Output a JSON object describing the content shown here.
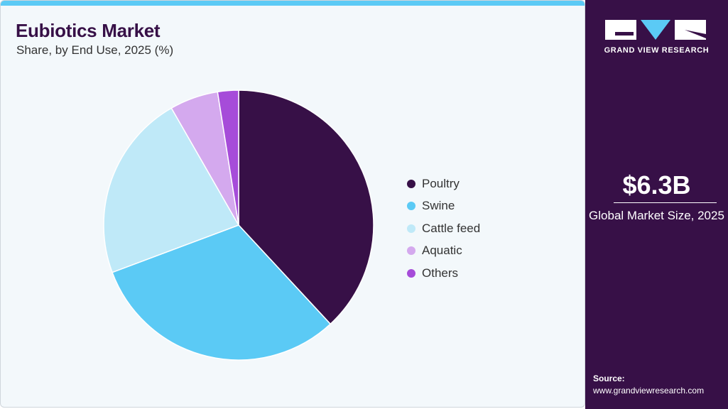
{
  "header": {
    "title": "Eubiotics Market",
    "subtitle": "Share, by End Use, 2025 (%)"
  },
  "chart_data": {
    "type": "pie",
    "title": "Eubiotics Market",
    "subtitle": "Share, by End Use, 2025 (%)",
    "start_angle": "12 o'clock, clockwise",
    "legend_position": "right",
    "categories": [
      "Poultry",
      "Swine",
      "Cattle feed",
      "Aquatic",
      "Others"
    ],
    "values": [
      38.1,
      31.2,
      22.4,
      5.8,
      2.5
    ],
    "colors": [
      "#371047",
      "#5bcaf5",
      "#bfe9f8",
      "#d4a9ee",
      "#a64cd9"
    ]
  },
  "sidebar": {
    "logo_text": "GRAND VIEW RESEARCH",
    "market_size": "$6.3B",
    "market_size_label": "Global Market Size, 2025",
    "source_label": "Source:",
    "source_url": "www.grandviewresearch.com"
  },
  "colors": {
    "accent": "#5bcaf5",
    "brand": "#371047"
  }
}
